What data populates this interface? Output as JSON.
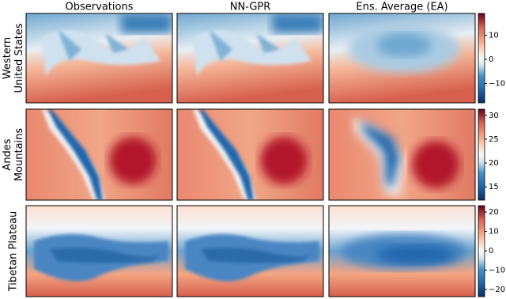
{
  "columns": [
    "Observations",
    "NN-GPR",
    "Ens. Average (EA)"
  ],
  "rows": [
    {
      "label": [
        "Western",
        "United States"
      ],
      "colorbar": {
        "lim": [
          -18,
          19
        ],
        "ticks": [
          {
            "value": 10,
            "label": "10"
          },
          {
            "value": 0,
            "label": "0"
          },
          {
            "value": -10,
            "label": "−10"
          }
        ]
      }
    },
    {
      "label": [
        "Andes",
        "Mountains"
      ],
      "colorbar": {
        "lim": [
          12.2,
          31.3
        ],
        "ticks": [
          30,
          25,
          20,
          15
        ]
      }
    },
    {
      "label": [
        "Tibetan Plateau"
      ],
      "colorbar": {
        "lim": [
          -23.7,
          23.3
        ],
        "ticks": [
          20,
          10,
          0,
          {
            "value": -10,
            "label": "−10"
          },
          {
            "value": -20,
            "label": "−20"
          }
        ]
      }
    }
  ]
}
